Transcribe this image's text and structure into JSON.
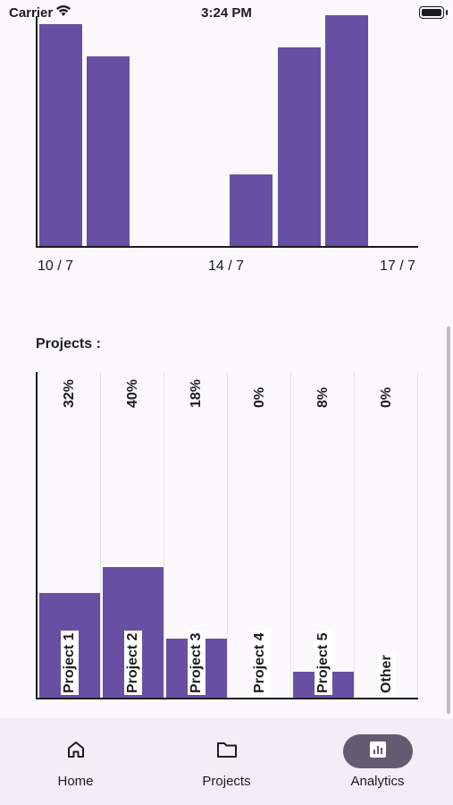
{
  "status_bar": {
    "carrier": "Carrier",
    "time": "3:24 PM"
  },
  "daily_chart": {
    "values": [
      0.96,
      0.82,
      0,
      0,
      0.31,
      0.86,
      1.0,
      0
    ],
    "date_labels": [
      "10 / 7",
      "14 / 7",
      "17 / 7"
    ],
    "color": "#6750a4"
  },
  "projects_section": {
    "title": "Projects :"
  },
  "chart_data": {
    "type": "bar",
    "categories": [
      "Project 1",
      "Project 2",
      "Project 3",
      "Project 4",
      "Project 5",
      "Other"
    ],
    "values": [
      32,
      40,
      18,
      0,
      8,
      0
    ],
    "value_labels": [
      "32%",
      "40%",
      "18%",
      "0%",
      "8%",
      "0%"
    ],
    "ylim": [
      0,
      100
    ],
    "color": "#6750a4"
  },
  "bottom_nav": {
    "items": [
      {
        "label": "Home",
        "icon": "home-icon"
      },
      {
        "label": "Projects",
        "icon": "folder-icon"
      },
      {
        "label": "Analytics",
        "icon": "analytics-icon",
        "active": true
      }
    ],
    "active_color": "#625b71"
  }
}
